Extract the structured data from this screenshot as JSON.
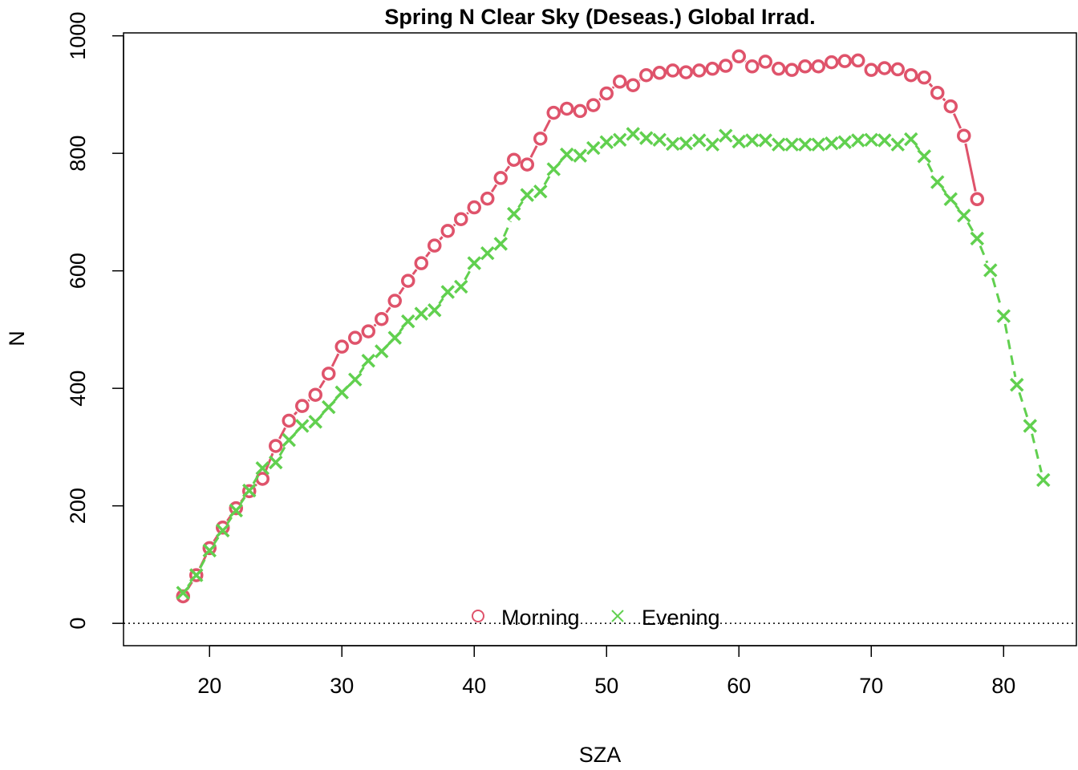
{
  "chart_data": {
    "type": "scatter",
    "title": "Spring N Clear Sky (Deseas.) Global Irrad.",
    "xlabel": "SZA",
    "ylabel": "N",
    "xlim": [
      13.5,
      85.5
    ],
    "ylim": [
      -38,
      1005
    ],
    "xticks": [
      20,
      30,
      40,
      50,
      60,
      70,
      80
    ],
    "yticks": [
      0,
      200,
      400,
      600,
      800,
      1000
    ],
    "reference_line": {
      "y": 0,
      "style": "dotted"
    },
    "legend_position": "bottom-center",
    "series": [
      {
        "name": "Morning",
        "marker": "circle",
        "line": "solid",
        "color": "#DF536B",
        "x": [
          18,
          19,
          20,
          21,
          22,
          23,
          24,
          25,
          26,
          27,
          28,
          29,
          30,
          31,
          32,
          33,
          34,
          35,
          36,
          37,
          38,
          39,
          40,
          41,
          42,
          43,
          44,
          45,
          46,
          47,
          48,
          49,
          50,
          51,
          52,
          53,
          54,
          55,
          56,
          57,
          58,
          59,
          60,
          61,
          62,
          63,
          64,
          65,
          66,
          67,
          68,
          69,
          70,
          71,
          72,
          73,
          74,
          75,
          76,
          77,
          78
        ],
        "y": [
          46,
          82,
          128,
          163,
          196,
          225,
          246,
          302,
          345,
          370,
          389,
          425,
          471,
          486,
          497,
          518,
          549,
          583,
          613,
          643,
          668,
          688,
          708,
          723,
          758,
          789,
          781,
          825,
          869,
          876,
          872,
          882,
          902,
          922,
          916,
          933,
          937,
          941,
          938,
          941,
          944,
          949,
          965,
          948,
          956,
          944,
          942,
          948,
          948,
          955,
          957,
          958,
          942,
          945,
          943,
          933,
          929,
          903,
          880,
          830,
          722
        ]
      },
      {
        "name": "Evening",
        "marker": "cross",
        "line": "dashed",
        "color": "#61D04F",
        "x": [
          18,
          19,
          20,
          21,
          22,
          23,
          24,
          25,
          26,
          27,
          28,
          29,
          30,
          31,
          32,
          33,
          34,
          35,
          36,
          37,
          38,
          39,
          40,
          41,
          42,
          43,
          44,
          45,
          46,
          47,
          48,
          49,
          50,
          51,
          52,
          53,
          54,
          55,
          56,
          57,
          58,
          59,
          60,
          61,
          62,
          63,
          64,
          65,
          66,
          67,
          68,
          69,
          70,
          71,
          72,
          73,
          74,
          75,
          76,
          77,
          78,
          79,
          80,
          81,
          82,
          83
        ],
        "y": [
          52,
          82,
          124,
          158,
          192,
          226,
          264,
          274,
          312,
          336,
          343,
          368,
          393,
          415,
          447,
          463,
          486,
          514,
          527,
          533,
          564,
          573,
          613,
          630,
          646,
          697,
          729,
          735,
          773,
          798,
          796,
          809,
          819,
          823,
          833,
          826,
          823,
          816,
          817,
          822,
          815,
          830,
          820,
          822,
          822,
          815,
          815,
          815,
          815,
          817,
          819,
          822,
          823,
          822,
          815,
          824,
          795,
          751,
          722,
          694,
          655,
          601,
          523,
          406,
          336,
          244
        ]
      }
    ]
  }
}
